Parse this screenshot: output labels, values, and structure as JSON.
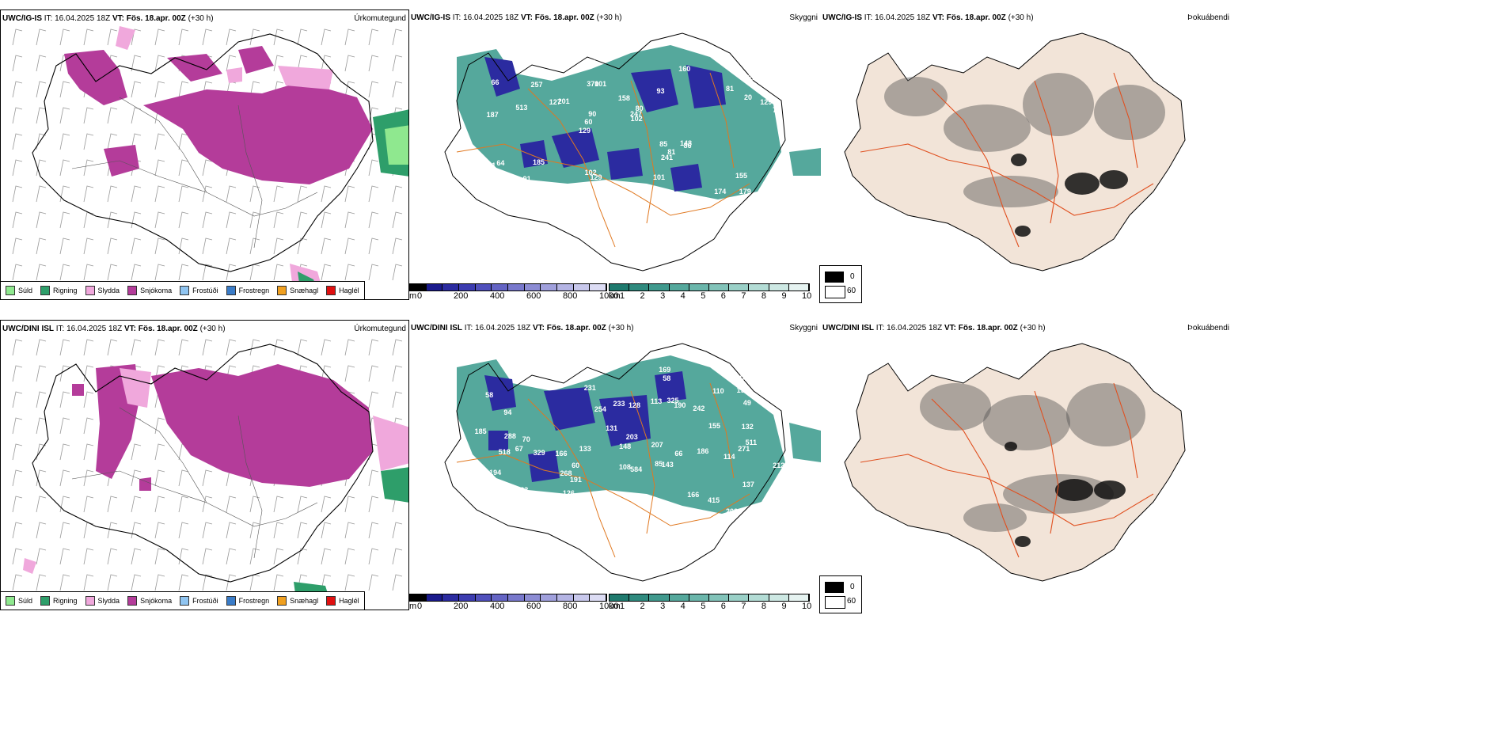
{
  "rows": [
    {
      "model": "UWC/IG-IS",
      "init_label": "IT:",
      "init_time": "16.04.2025 18Z",
      "valid_label": "VT:",
      "valid_time": "Fös. 18.apr. 00Z",
      "lead": "(+30 h)"
    },
    {
      "model": "UWC/DINI ISL",
      "init_label": "IT:",
      "init_time": "16.04.2025 18Z",
      "valid_label": "VT:",
      "valid_time": "Fös. 18.apr. 00Z",
      "lead": "(+30 h)"
    }
  ],
  "panel_titles": {
    "precip": "Úrkomutegund",
    "visibility": "Skyggni",
    "fog": "Þokuábendi"
  },
  "precip_legend": [
    {
      "label": "Súld",
      "color": "#8fe88f"
    },
    {
      "label": "Rigning",
      "color": "#2e9e6a"
    },
    {
      "label": "Slydda",
      "color": "#f0a8dc"
    },
    {
      "label": "Snjókoma",
      "color": "#b43c9a"
    },
    {
      "label": "Frostúði",
      "color": "#8fc4f0"
    },
    {
      "label": "Frostregn",
      "color": "#3a7cc8"
    },
    {
      "label": "Snæhagl",
      "color": "#f0a020"
    },
    {
      "label": "Haglél",
      "color": "#e01010"
    }
  ],
  "elevation_bar": {
    "unit": "m",
    "ticks": [
      "0",
      "200",
      "400",
      "600",
      "800",
      "1000"
    ],
    "colors": [
      "#000000",
      "#1a1a8c",
      "#2b2ba0",
      "#3c3cb0",
      "#5050bc",
      "#6464c4",
      "#7878cc",
      "#8c8cd4",
      "#a0a0dc",
      "#b4b4e4",
      "#c8c8ec",
      "#dcdcf4"
    ]
  },
  "visibility_bar": {
    "unit": "km",
    "ticks": [
      "1",
      "2",
      "3",
      "4",
      "5",
      "6",
      "7",
      "8",
      "9",
      "10"
    ],
    "colors": [
      "#1f7a6e",
      "#2f8a7e",
      "#40998d",
      "#55a89c",
      "#6bb6ab",
      "#82c3b9",
      "#9ad0c7",
      "#b3dcd5",
      "#cde8e3",
      "#e6f3f1"
    ]
  },
  "fog_legend": {
    "top": "0",
    "bottom": "60"
  },
  "ceiling_labels_top": [
    "179",
    "187",
    "172",
    "129",
    "93",
    "117",
    "370",
    "158",
    "64",
    "201",
    "89",
    "91",
    "101",
    "80",
    "86",
    "66",
    "71",
    "70",
    "85",
    "20",
    "60",
    "102",
    "90",
    "257",
    "160",
    "185",
    "174",
    "155",
    "148",
    "174",
    "127",
    "513",
    "241",
    "158",
    "129",
    "247",
    "149",
    "129",
    "102",
    "21",
    "81",
    "49",
    "81",
    "101"
  ],
  "ceiling_labels_bottom": [
    "202",
    "67",
    "85",
    "58",
    "137",
    "94",
    "133",
    "166",
    "242",
    "233",
    "190",
    "415",
    "191",
    "231",
    "207",
    "194",
    "186",
    "203",
    "185",
    "160",
    "114",
    "128",
    "155",
    "212",
    "511",
    "288",
    "329",
    "148",
    "131",
    "196",
    "143",
    "518",
    "268",
    "325",
    "254",
    "114",
    "271",
    "166",
    "110",
    "92",
    "60",
    "584",
    "126",
    "169",
    "133",
    "70",
    "49",
    "58",
    "113",
    "108",
    "66",
    "132"
  ]
}
